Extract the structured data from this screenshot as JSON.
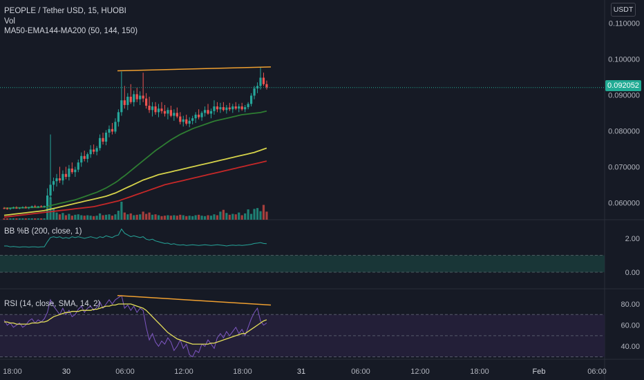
{
  "header": {
    "symbol_line": "PEOPLE / Tether USD, 15, HUOBI",
    "vol_label": "Vol",
    "ma_label": "MA50-EMA144-MA200 (50, 144, 150)",
    "currency": "USDT",
    "last_price": "0.092052"
  },
  "bb_panel": {
    "label": "BB %B (200, close, 1)"
  },
  "rsi_panel": {
    "label": "RSI (14, close, SMA, 14, 2)"
  },
  "colors": {
    "background": "#161a25",
    "up": "#26a69a",
    "down": "#ef5350",
    "ma50": "#2e7d32",
    "ema144": "#d6d34a",
    "ma200": "#c62828",
    "trendline": "#f0a030",
    "rsi": "#7e57c2",
    "rsi_ma": "#e6e05a",
    "bb": "#26a69a"
  },
  "chart_data": [
    {
      "type": "candlestick",
      "title": "PEOPLE / Tether USD, 15, HUOBI",
      "ylim": [
        0.055,
        0.115
      ],
      "y_ticks": [
        "0.110000",
        "0.100000",
        "0.090000",
        "0.080000",
        "0.070000",
        "0.060000"
      ],
      "x_tick_labels": [
        "18:00",
        "30",
        "06:00",
        "12:00",
        "18:00",
        "31",
        "06:00",
        "12:00",
        "18:00",
        "Feb",
        "06:00"
      ],
      "last_price": 0.092052,
      "trendline": {
        "from": [
          "30 06:00",
          0.0967
        ],
        "to": [
          "30 20:15",
          0.0978
        ]
      },
      "ohlc": [
        [
          0.0585,
          0.0588,
          0.0582,
          0.0584
        ],
        [
          0.0584,
          0.0587,
          0.0581,
          0.0583
        ],
        [
          0.0583,
          0.0586,
          0.058,
          0.0585
        ],
        [
          0.0585,
          0.0589,
          0.0583,
          0.0586
        ],
        [
          0.0586,
          0.059,
          0.0583,
          0.0584
        ],
        [
          0.0584,
          0.0587,
          0.0582,
          0.0586
        ],
        [
          0.0586,
          0.059,
          0.0584,
          0.0587
        ],
        [
          0.0587,
          0.0591,
          0.0584,
          0.0585
        ],
        [
          0.0585,
          0.0588,
          0.0582,
          0.0587
        ],
        [
          0.0587,
          0.0592,
          0.0585,
          0.059
        ],
        [
          0.059,
          0.0594,
          0.0587,
          0.0588
        ],
        [
          0.0588,
          0.0591,
          0.0585,
          0.059
        ],
        [
          0.059,
          0.0593,
          0.0587,
          0.0589
        ],
        [
          0.0589,
          0.0592,
          0.0586,
          0.0591
        ],
        [
          0.0591,
          0.064,
          0.0589,
          0.062
        ],
        [
          0.062,
          0.079,
          0.061,
          0.065
        ],
        [
          0.065,
          0.067,
          0.0632,
          0.066
        ],
        [
          0.066,
          0.068,
          0.0645,
          0.0668
        ],
        [
          0.0668,
          0.07,
          0.0655,
          0.0662
        ],
        [
          0.0662,
          0.069,
          0.065,
          0.068
        ],
        [
          0.068,
          0.07,
          0.0665,
          0.0672
        ],
        [
          0.0672,
          0.0705,
          0.0662,
          0.0695
        ],
        [
          0.0695,
          0.0712,
          0.068,
          0.0685
        ],
        [
          0.0685,
          0.07,
          0.0672,
          0.0692
        ],
        [
          0.0692,
          0.072,
          0.0685,
          0.0712
        ],
        [
          0.0712,
          0.074,
          0.07,
          0.073
        ],
        [
          0.073,
          0.0745,
          0.0715,
          0.0722
        ],
        [
          0.0722,
          0.074,
          0.0712,
          0.0735
        ],
        [
          0.0735,
          0.076,
          0.0725,
          0.0748
        ],
        [
          0.0748,
          0.0762,
          0.0735,
          0.0742
        ],
        [
          0.0742,
          0.0758,
          0.0732,
          0.0752
        ],
        [
          0.0752,
          0.079,
          0.0745,
          0.078
        ],
        [
          0.078,
          0.0795,
          0.0762,
          0.077
        ],
        [
          0.077,
          0.0802,
          0.076,
          0.0795
        ],
        [
          0.0795,
          0.0815,
          0.0782,
          0.0805
        ],
        [
          0.0805,
          0.0822,
          0.079,
          0.0798
        ],
        [
          0.0798,
          0.0835,
          0.0792,
          0.0825
        ],
        [
          0.0825,
          0.086,
          0.0812,
          0.0852
        ],
        [
          0.0852,
          0.0965,
          0.0842,
          0.0885
        ],
        [
          0.0885,
          0.0925,
          0.0862,
          0.0872
        ],
        [
          0.0872,
          0.0905,
          0.0858,
          0.0895
        ],
        [
          0.0895,
          0.093,
          0.0875,
          0.088
        ],
        [
          0.088,
          0.0912,
          0.0868,
          0.0902
        ],
        [
          0.0902,
          0.092,
          0.088,
          0.0888
        ],
        [
          0.0888,
          0.091,
          0.0872,
          0.0898
        ],
        [
          0.0898,
          0.0962,
          0.088,
          0.089
        ],
        [
          0.089,
          0.0905,
          0.0862,
          0.087
        ],
        [
          0.087,
          0.0895,
          0.085,
          0.0858
        ],
        [
          0.0858,
          0.088,
          0.084,
          0.0868
        ],
        [
          0.0868,
          0.088,
          0.0845,
          0.0852
        ],
        [
          0.0852,
          0.0875,
          0.0838,
          0.0862
        ],
        [
          0.0862,
          0.088,
          0.0848,
          0.0855
        ],
        [
          0.0855,
          0.0872,
          0.084,
          0.0848
        ],
        [
          0.0848,
          0.0865,
          0.0832,
          0.0858
        ],
        [
          0.0858,
          0.087,
          0.0838,
          0.0842
        ],
        [
          0.0842,
          0.086,
          0.0828,
          0.085
        ],
        [
          0.085,
          0.0865,
          0.0835,
          0.084
        ],
        [
          0.084,
          0.0852,
          0.0818,
          0.0825
        ],
        [
          0.0825,
          0.0842,
          0.0812,
          0.0832
        ],
        [
          0.0832,
          0.0845,
          0.0815,
          0.082
        ],
        [
          0.082,
          0.0838,
          0.081,
          0.0828
        ],
        [
          0.0828,
          0.0842,
          0.0818,
          0.0835
        ],
        [
          0.0835,
          0.0852,
          0.0822,
          0.0845
        ],
        [
          0.0845,
          0.086,
          0.0832,
          0.0838
        ],
        [
          0.0838,
          0.0855,
          0.0828,
          0.085
        ],
        [
          0.085,
          0.0868,
          0.084,
          0.0858
        ],
        [
          0.0858,
          0.0875,
          0.0845,
          0.0848
        ],
        [
          0.0848,
          0.0862,
          0.0835,
          0.0855
        ],
        [
          0.0855,
          0.0885,
          0.0845,
          0.0868
        ],
        [
          0.0868,
          0.088,
          0.0852,
          0.086
        ],
        [
          0.086,
          0.0878,
          0.085,
          0.0866
        ],
        [
          0.0866,
          0.088,
          0.0854,
          0.0858
        ],
        [
          0.0858,
          0.0872,
          0.0848,
          0.0865
        ],
        [
          0.0865,
          0.0878,
          0.0855,
          0.086
        ],
        [
          0.086,
          0.0875,
          0.085,
          0.0868
        ],
        [
          0.0868,
          0.088,
          0.0858,
          0.0862
        ],
        [
          0.0862,
          0.0875,
          0.0852,
          0.0868
        ],
        [
          0.0868,
          0.0878,
          0.0856,
          0.086
        ],
        [
          0.086,
          0.0872,
          0.0852,
          0.0866
        ],
        [
          0.0866,
          0.088,
          0.086,
          0.0875
        ],
        [
          0.0875,
          0.0905,
          0.0868,
          0.0898
        ],
        [
          0.0898,
          0.0925,
          0.0888,
          0.0918
        ],
        [
          0.0918,
          0.0935,
          0.0905,
          0.0925
        ],
        [
          0.0925,
          0.0978,
          0.0915,
          0.0948
        ],
        [
          0.0948,
          0.0962,
          0.0925,
          0.093
        ],
        [
          0.093,
          0.094,
          0.0915,
          0.0921
        ]
      ],
      "volume": [
        0.3,
        0.3,
        0.3,
        0.3,
        0.3,
        0.3,
        0.3,
        0.3,
        0.3,
        0.3,
        0.3,
        0.3,
        0.3,
        0.3,
        3.0,
        5.0,
        2.5,
        1.6,
        1.2,
        1.5,
        1.0,
        1.3,
        0.9,
        1.1,
        1.2,
        1.0,
        0.9,
        1.0,
        0.9,
        0.8,
        0.9,
        1.4,
        1.0,
        1.1,
        1.2,
        0.9,
        1.2,
        2.0,
        4.0,
        1.6,
        1.2,
        1.4,
        1.0,
        1.1,
        1.2,
        1.8,
        1.3,
        1.6,
        1.1,
        1.2,
        1.0,
        0.8,
        0.9,
        1.0,
        0.9,
        1.0,
        0.9,
        1.1,
        1.0,
        0.8,
        0.9,
        0.8,
        1.0,
        1.1,
        0.9,
        0.8,
        1.0,
        0.9,
        1.2,
        1.0,
        1.8,
        2.2,
        1.5,
        1.1,
        1.3,
        1.2,
        1.6,
        1.0,
        1.4,
        2.3,
        1.3,
        2.4,
        2.6,
        1.9,
        3.3,
        1.8
      ],
      "ma50": [
        0.0585,
        0.0585,
        0.0585,
        0.0586,
        0.0586,
        0.0586,
        0.0586,
        0.0586,
        0.0587,
        0.0587,
        0.0587,
        0.0587,
        0.0588,
        0.0588,
        0.0589,
        0.0592,
        0.0594,
        0.0596,
        0.0598,
        0.06,
        0.0602,
        0.0604,
        0.0606,
        0.0608,
        0.0611,
        0.0614,
        0.0617,
        0.062,
        0.0623,
        0.0626,
        0.0629,
        0.0633,
        0.0637,
        0.0641,
        0.0646,
        0.0651,
        0.0656,
        0.0662,
        0.0669,
        0.0675,
        0.0682,
        0.0689,
        0.0696,
        0.0703,
        0.071,
        0.0717,
        0.0724,
        0.0731,
        0.0738,
        0.0745,
        0.0751,
        0.0757,
        0.0763,
        0.0769,
        0.0775,
        0.078,
        0.0785,
        0.079,
        0.0794,
        0.0798,
        0.0802,
        0.0806,
        0.0809,
        0.0812,
        0.0815,
        0.0818,
        0.0821,
        0.0824,
        0.0827,
        0.0829,
        0.0831,
        0.0833,
        0.0835,
        0.0837,
        0.0839,
        0.0841,
        0.0843,
        0.0845,
        0.0846,
        0.0847,
        0.0848,
        0.0849,
        0.085,
        0.0851,
        0.0853,
        0.0855
      ],
      "ema144": [
        0.0565,
        0.0566,
        0.0567,
        0.0568,
        0.0569,
        0.057,
        0.0571,
        0.0572,
        0.0573,
        0.0574,
        0.0575,
        0.0576,
        0.0577,
        0.0578,
        0.058,
        0.0582,
        0.0584,
        0.0586,
        0.0588,
        0.059,
        0.0592,
        0.0594,
        0.0596,
        0.0598,
        0.06,
        0.0602,
        0.0604,
        0.0606,
        0.0608,
        0.061,
        0.0612,
        0.0614,
        0.0616,
        0.0618,
        0.0621,
        0.0624,
        0.0627,
        0.0631,
        0.0635,
        0.0639,
        0.0643,
        0.0647,
        0.0651,
        0.0655,
        0.0659,
        0.0663,
        0.0666,
        0.0669,
        0.0672,
        0.0675,
        0.0678,
        0.068,
        0.0682,
        0.0684,
        0.0686,
        0.0688,
        0.069,
        0.0692,
        0.0694,
        0.0696,
        0.0698,
        0.07,
        0.0702,
        0.0704,
        0.0706,
        0.0708,
        0.071,
        0.0712,
        0.0714,
        0.0716,
        0.0718,
        0.072,
        0.0722,
        0.0724,
        0.0726,
        0.0728,
        0.073,
        0.0732,
        0.0734,
        0.0736,
        0.0738,
        0.074,
        0.0743,
        0.0746,
        0.0749,
        0.0752
      ],
      "ma200": [
        0.056,
        0.0561,
        0.0562,
        0.0563,
        0.0564,
        0.0565,
        0.0566,
        0.0567,
        0.0568,
        0.0569,
        0.057,
        0.0571,
        0.0572,
        0.0573,
        0.0574,
        0.0575,
        0.0576,
        0.0577,
        0.0578,
        0.0579,
        0.058,
        0.0581,
        0.0582,
        0.0583,
        0.0584,
        0.0585,
        0.0586,
        0.0587,
        0.0588,
        0.0589,
        0.0591,
        0.0593,
        0.0595,
        0.0597,
        0.0599,
        0.0601,
        0.0603,
        0.0605,
        0.0608,
        0.0611,
        0.0614,
        0.0617,
        0.062,
        0.0623,
        0.0626,
        0.0629,
        0.0632,
        0.0635,
        0.0638,
        0.0641,
        0.0644,
        0.0647,
        0.065,
        0.0652,
        0.0654,
        0.0656,
        0.0658,
        0.066,
        0.0662,
        0.0664,
        0.0666,
        0.0668,
        0.067,
        0.0672,
        0.0674,
        0.0676,
        0.0678,
        0.068,
        0.0682,
        0.0684,
        0.0686,
        0.0688,
        0.069,
        0.0692,
        0.0694,
        0.0696,
        0.0698,
        0.07,
        0.0702,
        0.0704,
        0.0706,
        0.0708,
        0.071,
        0.0712,
        0.0714,
        0.0716
      ]
    },
    {
      "type": "line",
      "title": "BB %B (200, close, 1)",
      "ylim": [
        -0.3,
        3.0
      ],
      "y_ticks": [
        "2.00",
        "0.00"
      ],
      "band": [
        0,
        1
      ],
      "values": [
        1.55,
        1.55,
        1.5,
        1.52,
        1.5,
        1.48,
        1.5,
        1.5,
        1.48,
        1.5,
        1.5,
        1.48,
        1.5,
        1.5,
        1.8,
        2.05,
        2.1,
        2.05,
        2.1,
        2.0,
        2.05,
        2.0,
        2.1,
        2.05,
        2.1,
        2.05,
        2.0,
        2.05,
        2.1,
        2.05,
        2.0,
        2.1,
        2.05,
        2.15,
        2.1,
        2.05,
        2.15,
        2.2,
        2.55,
        2.3,
        2.2,
        2.1,
        2.15,
        2.1,
        2.05,
        2.1,
        1.95,
        1.9,
        1.95,
        1.85,
        1.8,
        1.75,
        1.7,
        1.72,
        1.65,
        1.68,
        1.62,
        1.6,
        1.62,
        1.58,
        1.6,
        1.62,
        1.6,
        1.58,
        1.6,
        1.62,
        1.6,
        1.58,
        1.6,
        1.62,
        1.6,
        1.58,
        1.55,
        1.58,
        1.6,
        1.58,
        1.6,
        1.58,
        1.6,
        1.62,
        1.65,
        1.7,
        1.72,
        1.75,
        1.7,
        1.68
      ]
    },
    {
      "type": "line",
      "title": "RSI (14, close, SMA, 14, 2)",
      "ylim": [
        20,
        100
      ],
      "y_ticks": [
        "80.00",
        "60.00",
        "40.00"
      ],
      "band": [
        30,
        70
      ],
      "trendline": {
        "from": [
          "30 06:00",
          88
        ],
        "to": [
          "30 21:00",
          79
        ]
      },
      "rsi": [
        65,
        60,
        62,
        58,
        60,
        62,
        58,
        60,
        64,
        66,
        62,
        65,
        63,
        66,
        72,
        84,
        78,
        74,
        70,
        76,
        70,
        74,
        68,
        70,
        75,
        78,
        72,
        76,
        78,
        74,
        77,
        82,
        76,
        80,
        84,
        80,
        84,
        86,
        88,
        76,
        79,
        74,
        78,
        72,
        76,
        74,
        58,
        46,
        52,
        44,
        40,
        45,
        42,
        48,
        44,
        36,
        40,
        46,
        38,
        42,
        32,
        30,
        36,
        34,
        42,
        40,
        46,
        42,
        38,
        48,
        52,
        48,
        54,
        50,
        54,
        58,
        52,
        56,
        50,
        58,
        66,
        72,
        76,
        64,
        60,
        62
      ],
      "rsi_ma": [
        63,
        63,
        62,
        62,
        61,
        61,
        61,
        61,
        61,
        62,
        62,
        62,
        63,
        63,
        64,
        66,
        68,
        69,
        70,
        71,
        72,
        72,
        73,
        73,
        73,
        74,
        74,
        74,
        74,
        75,
        75,
        76,
        77,
        78,
        78,
        79,
        79,
        80,
        80,
        80,
        80,
        80,
        79,
        78,
        77,
        76,
        74,
        71,
        68,
        65,
        62,
        59,
        56,
        53,
        51,
        49,
        47,
        46,
        45,
        44,
        43,
        42,
        42,
        42,
        42,
        42,
        42,
        43,
        43,
        44,
        45,
        46,
        47,
        48,
        49,
        50,
        51,
        52,
        52,
        54,
        56,
        58,
        60,
        62,
        64,
        65
      ]
    }
  ]
}
